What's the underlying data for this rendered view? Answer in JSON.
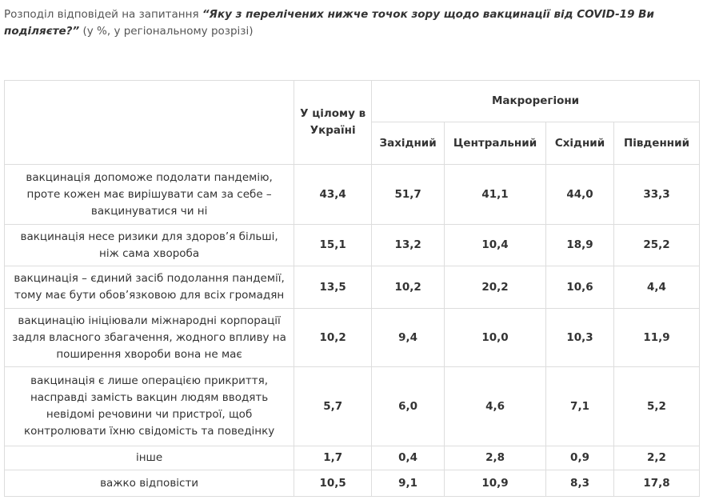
{
  "intro": {
    "before": "Розподіл відповідей на запитання ",
    "question": "“Яку з перелічених нижче точок зору щодо вакцинації від COVID-19 Ви поділяєте?”",
    "after": " (у %, у регіональному розрізі)"
  },
  "table": {
    "total_header": "У цілому в Україні",
    "group_header": "Макрорегіони",
    "region_headers": [
      "Західний",
      "Центральний",
      "Східний",
      "Південний"
    ],
    "rows": [
      [
        "вакцинація допоможе подолати пандемію, проте кожен має вирішувати сам за себе – вакцинуватися чи ні",
        "43,4",
        "51,7",
        "41,1",
        "44,0",
        "33,3"
      ],
      [
        "вакцинація несе ризики для здоров’я більші, ніж сама хвороба",
        "15,1",
        "13,2",
        "10,4",
        "18,9",
        "25,2"
      ],
      [
        "вакцинація – єдиний засіб подолання пандемії, тому має бути обов’язковою для всіх громадян",
        "13,5",
        "10,2",
        "20,2",
        "10,6",
        "4,4"
      ],
      [
        "вакцинацію ініціювали міжнародні корпорації задля власного збагачення, жодного впливу на поширення хвороби вона не має",
        "10,2",
        "9,4",
        "10,0",
        "10,3",
        "11,9"
      ],
      [
        "вакцинація є лише операцією прикриття, насправді замість вакцин людям вводять невідомі речовини чи пристрої, щоб контролювати їхню свідомість та поведінку",
        "5,7",
        "6,0",
        "4,6",
        "7,1",
        "5,2"
      ],
      [
        "інше",
        "1,7",
        "0,4",
        "2,8",
        "0,9",
        "2,2"
      ],
      [
        "важко відповісти",
        "10,5",
        "9,1",
        "10,9",
        "8,3",
        "17,8"
      ]
    ]
  }
}
